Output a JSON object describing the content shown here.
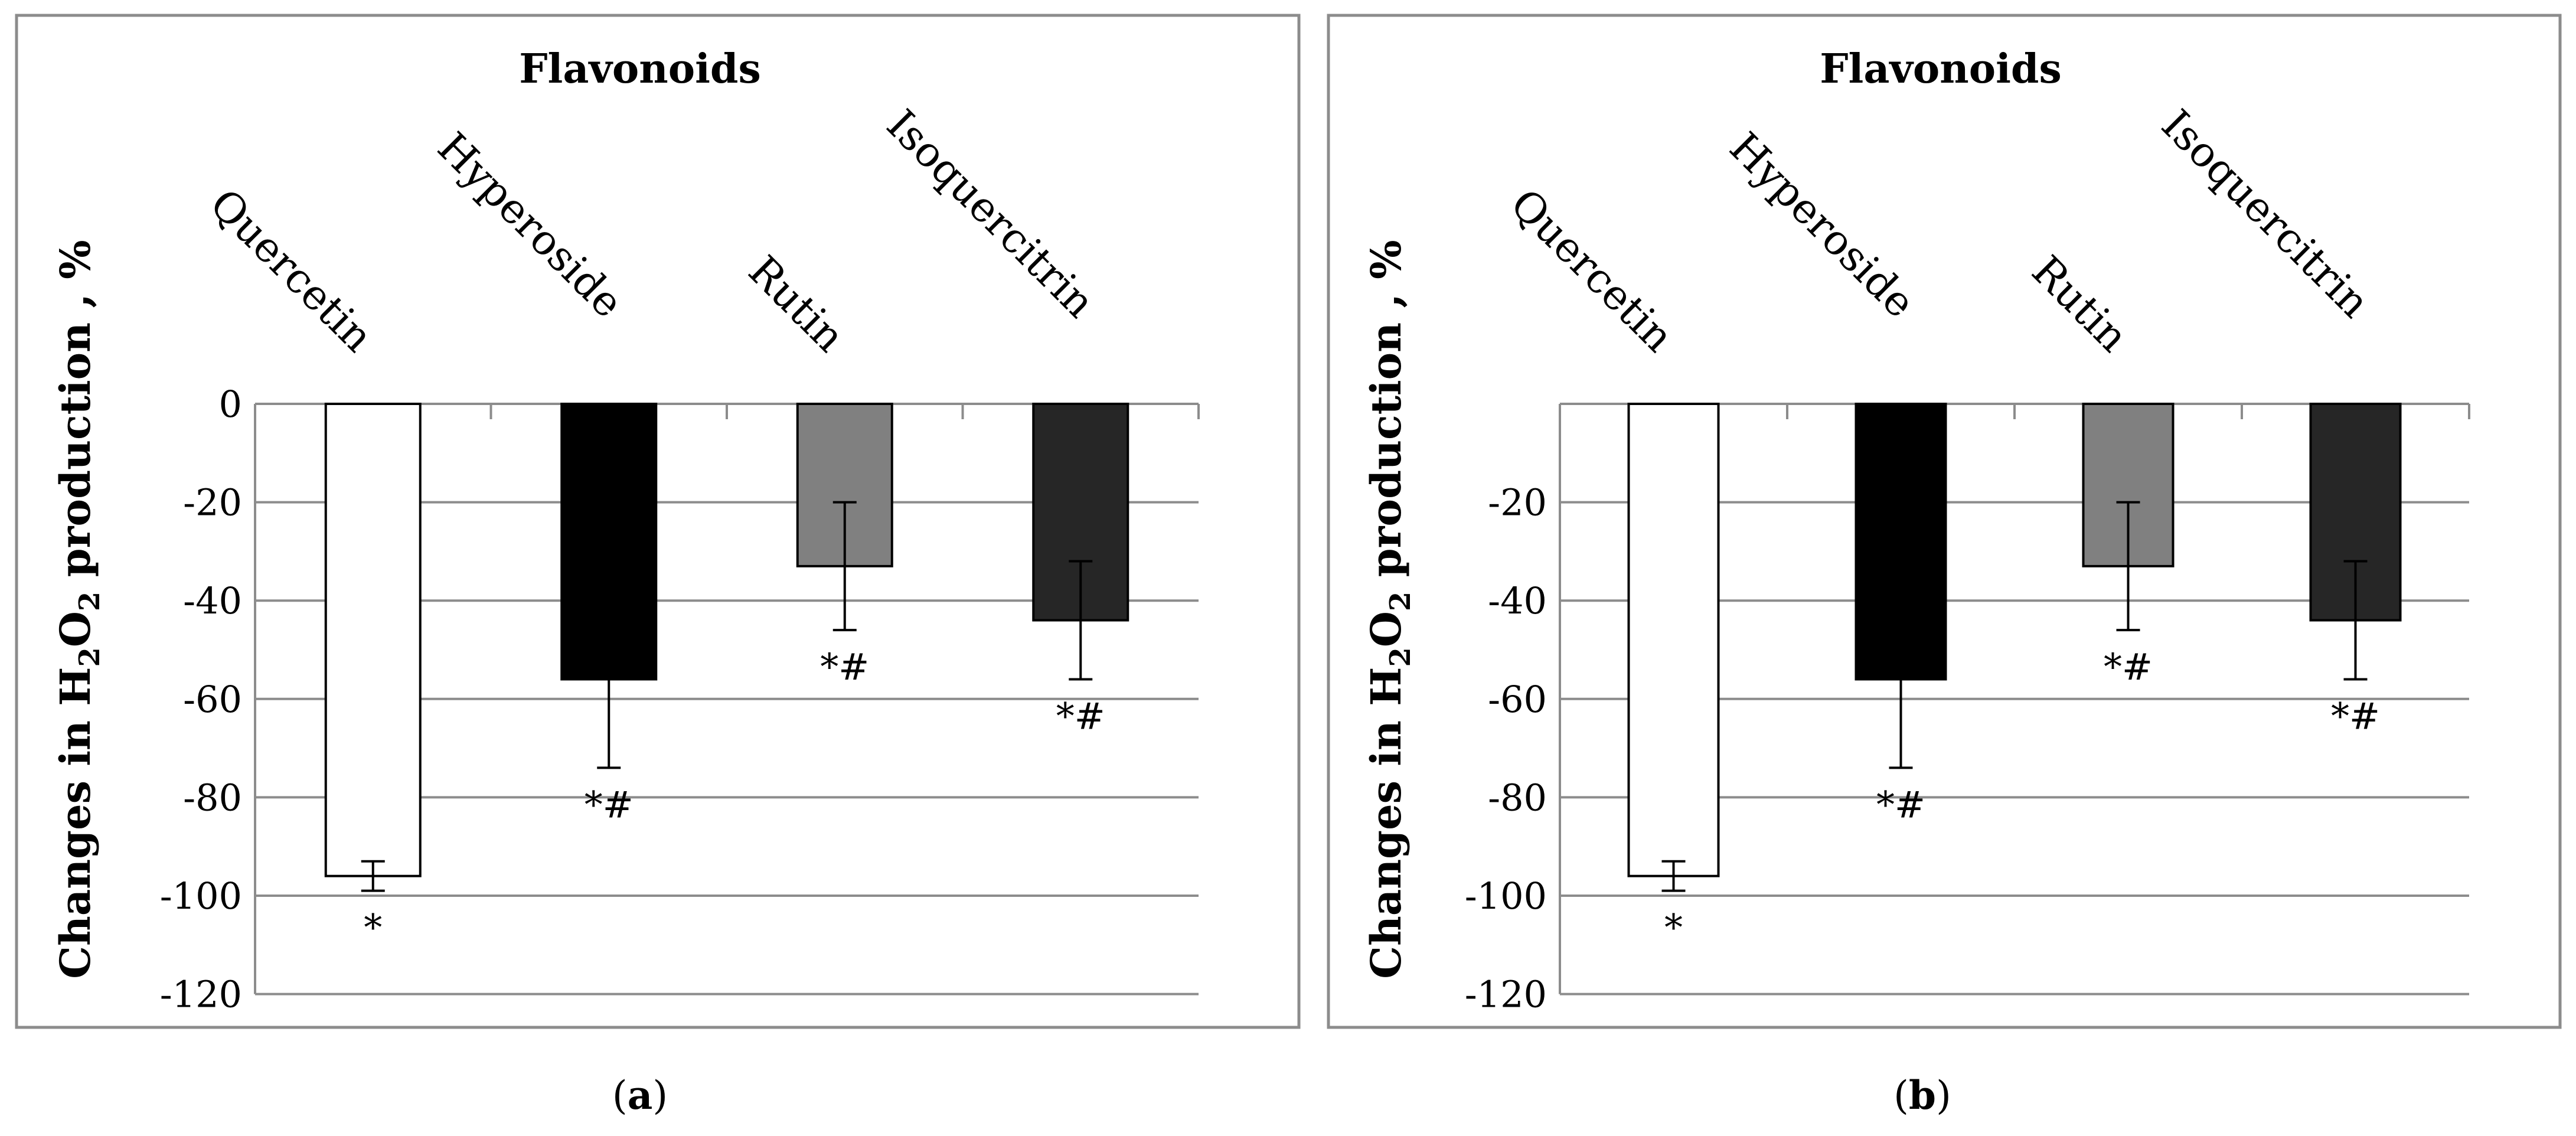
{
  "figure": {
    "panels": [
      {
        "caption_open": "(",
        "caption_letter": "a",
        "caption_close": ")"
      },
      {
        "caption_open": "(",
        "caption_letter": "b",
        "caption_close": ")"
      }
    ]
  },
  "colors": {
    "frame": "#8c8c8c",
    "gridline": "#8c8c8c",
    "bar_outline": "#000000"
  },
  "chart_data": [
    {
      "type": "bar",
      "title": "Flavonoids",
      "ylabel_prefix": "Changes in H",
      "ylabel_sub1": "2",
      "ylabel_mid": "O",
      "ylabel_sub2": "2",
      "ylabel_suffix": " production , %",
      "categories": [
        "Quercetin",
        "Hyperoside",
        "Rutin",
        "Isoquercitrin"
      ],
      "values": [
        -96,
        -56,
        -33,
        -44
      ],
      "errors": [
        3,
        18,
        13,
        12
      ],
      "annotations": [
        "*",
        "*#",
        "*#",
        "*#"
      ],
      "bar_colors": [
        "#ffffff",
        "#000000",
        "#808080",
        "#262626"
      ],
      "ylim": [
        -120,
        0
      ],
      "yticks": [
        0,
        -20,
        -40,
        -60,
        -80,
        -100,
        -120
      ],
      "ytick_labels": [
        "0",
        "-20",
        "-40",
        "-60",
        "-80",
        "-100",
        "-120"
      ],
      "grid": true
    },
    {
      "type": "bar",
      "title": "Flavonoids",
      "ylabel_prefix": "Changes in H",
      "ylabel_sub1": "2",
      "ylabel_mid": "O",
      "ylabel_sub2": "2",
      "ylabel_suffix": " production , %",
      "categories": [
        "Quercetin",
        "Hyperoside",
        "Rutin",
        "Isoquercitrin"
      ],
      "values": [
        -96,
        -56,
        -33,
        -44
      ],
      "errors": [
        3,
        18,
        13,
        12
      ],
      "annotations": [
        "*",
        "*#",
        "*#",
        "*#"
      ],
      "bar_colors": [
        "#ffffff",
        "#000000",
        "#808080",
        "#262626"
      ],
      "ylim": [
        -120,
        0
      ],
      "yticks": [
        -20,
        -40,
        -60,
        -80,
        -100,
        -120
      ],
      "ytick_labels": [
        "-20",
        "-40",
        "-60",
        "-80",
        "-100",
        "-120"
      ],
      "grid": true
    }
  ]
}
